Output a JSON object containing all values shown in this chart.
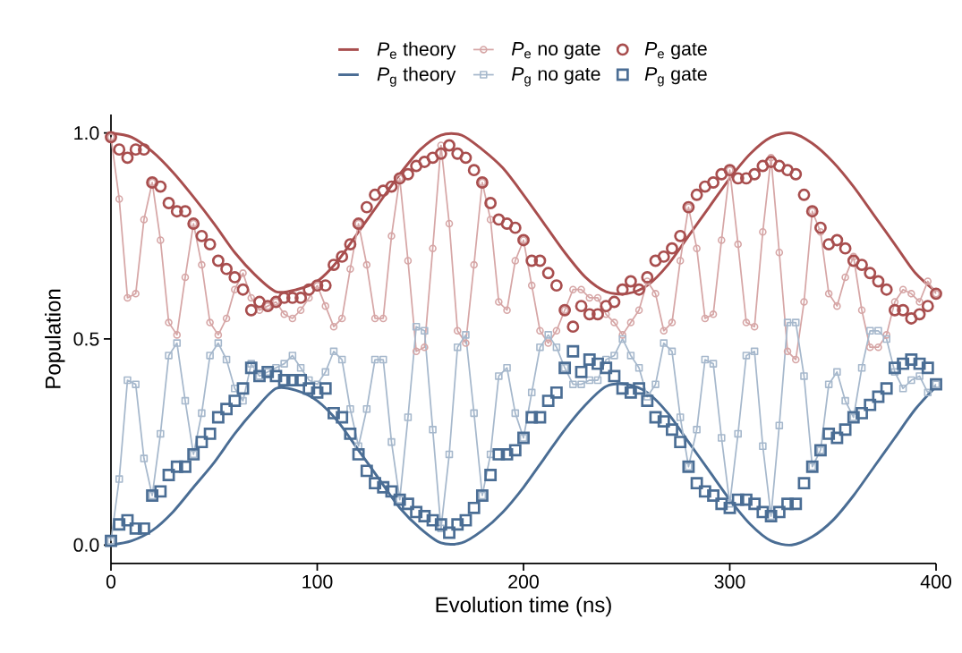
{
  "chart_data": {
    "type": "line",
    "xlabel": "Evolution time (ns)",
    "ylabel": "Population",
    "xlim": [
      0,
      400
    ],
    "ylim": [
      -0.045,
      1.045
    ],
    "xticks": [
      0,
      100,
      200,
      300,
      400
    ],
    "yticks": [
      {
        "value": 0,
        "label": "0.0"
      },
      {
        "value": 0.5,
        "label": "0.5"
      },
      {
        "value": 1,
        "label": "1.0"
      }
    ],
    "legend": "top",
    "x": [
      0,
      4,
      8,
      12,
      16,
      20,
      24,
      28,
      32,
      36,
      40,
      44,
      48,
      52,
      56,
      60,
      64,
      68,
      72,
      76,
      80,
      84,
      88,
      92,
      96,
      100,
      104,
      108,
      112,
      116,
      120,
      124,
      128,
      132,
      136,
      140,
      144,
      148,
      152,
      156,
      160,
      164,
      168,
      172,
      176,
      180,
      184,
      188,
      192,
      196,
      200,
      204,
      208,
      212,
      216,
      220,
      224,
      228,
      232,
      236,
      240,
      244,
      248,
      252,
      256,
      260,
      264,
      268,
      272,
      276,
      280,
      284,
      288,
      292,
      296,
      300,
      304,
      308,
      312,
      316,
      320,
      324,
      328,
      332,
      336,
      340,
      344,
      348,
      352,
      356,
      360,
      364,
      368,
      372,
      376,
      380,
      384,
      388,
      392,
      396,
      400
    ],
    "series": [
      {
        "name": "*P*$_{e}$ theory",
        "color": "#a84e4e",
        "x": [
          0,
          10,
          20,
          30,
          40,
          50,
          60,
          70,
          80,
          90,
          100,
          110,
          120,
          130,
          140,
          150,
          160,
          170,
          180,
          190,
          200,
          210,
          220,
          230,
          240,
          250,
          260,
          270,
          280,
          290,
          300,
          310,
          320,
          330,
          340,
          350,
          360,
          370,
          380,
          390,
          400
        ],
        "values": [
          1.0,
          0.99,
          0.955,
          0.905,
          0.845,
          0.78,
          0.71,
          0.655,
          0.615,
          0.62,
          0.64,
          0.69,
          0.76,
          0.83,
          0.9,
          0.96,
          0.995,
          0.995,
          0.96,
          0.915,
          0.85,
          0.78,
          0.71,
          0.65,
          0.615,
          0.61,
          0.63,
          0.68,
          0.75,
          0.82,
          0.89,
          0.95,
          0.99,
          1.0,
          0.975,
          0.93,
          0.87,
          0.8,
          0.73,
          0.66,
          0.615
        ]
      },
      {
        "name": "*P*$_{e}$ no gate",
        "marker": "circle",
        "color": "#d6a6a6",
        "values": [
          0.99,
          0.84,
          0.6,
          0.61,
          0.79,
          0.88,
          0.74,
          0.54,
          0.51,
          0.65,
          0.78,
          0.68,
          0.54,
          0.51,
          0.55,
          0.62,
          0.66,
          0.6,
          0.57,
          0.58,
          0.59,
          0.56,
          0.55,
          0.57,
          0.6,
          0.63,
          0.58,
          0.53,
          0.55,
          0.67,
          0.78,
          0.68,
          0.55,
          0.55,
          0.75,
          0.89,
          0.69,
          0.47,
          0.48,
          0.72,
          0.97,
          0.78,
          0.52,
          0.49,
          0.68,
          0.88,
          0.79,
          0.59,
          0.57,
          0.69,
          0.74,
          0.63,
          0.52,
          0.49,
          0.52,
          0.57,
          0.62,
          0.62,
          0.6,
          0.6,
          0.56,
          0.54,
          0.51,
          0.54,
          0.57,
          0.64,
          0.61,
          0.52,
          0.54,
          0.69,
          0.82,
          0.72,
          0.55,
          0.56,
          0.74,
          0.91,
          0.73,
          0.54,
          0.53,
          0.76,
          0.94,
          0.71,
          0.47,
          0.45,
          0.59,
          0.81,
          0.76,
          0.61,
          0.58,
          0.65,
          0.7,
          0.57,
          0.48,
          0.48,
          0.51,
          0.59,
          0.62,
          0.61,
          0.59,
          0.64,
          0.61
        ]
      },
      {
        "name": "*P*$_{e}$ gate",
        "type": "scatter",
        "marker": "circle",
        "color": "#a84e4e",
        "values": [
          0.99,
          0.96,
          0.94,
          0.96,
          0.96,
          0.88,
          0.87,
          0.83,
          0.81,
          0.81,
          0.78,
          0.75,
          0.73,
          0.69,
          0.67,
          0.65,
          0.62,
          0.57,
          0.59,
          0.58,
          0.59,
          0.6,
          0.6,
          0.6,
          0.62,
          0.63,
          0.63,
          0.68,
          0.7,
          0.73,
          0.78,
          0.82,
          0.85,
          0.86,
          0.87,
          0.89,
          0.9,
          0.92,
          0.93,
          0.94,
          0.95,
          0.97,
          0.95,
          0.94,
          0.91,
          0.88,
          0.83,
          0.79,
          0.78,
          0.77,
          0.74,
          0.69,
          0.69,
          0.66,
          0.63,
          0.57,
          0.53,
          0.58,
          0.56,
          0.56,
          0.58,
          0.59,
          0.62,
          0.64,
          0.62,
          0.65,
          0.69,
          0.7,
          0.72,
          0.75,
          0.82,
          0.85,
          0.87,
          0.88,
          0.9,
          0.91,
          0.89,
          0.89,
          0.9,
          0.92,
          0.93,
          0.92,
          0.91,
          0.9,
          0.85,
          0.81,
          0.77,
          0.73,
          0.74,
          0.72,
          0.69,
          0.68,
          0.66,
          0.64,
          0.62,
          0.57,
          0.57,
          0.55,
          0.56,
          0.58,
          0.61
        ]
      },
      {
        "name": "*P*$_{g}$ theory",
        "color": "#4a6d94",
        "x": [
          0,
          10,
          20,
          30,
          40,
          50,
          60,
          70,
          80,
          90,
          100,
          110,
          120,
          130,
          140,
          150,
          160,
          170,
          180,
          190,
          200,
          210,
          220,
          230,
          240,
          250,
          260,
          270,
          280,
          290,
          300,
          310,
          320,
          330,
          340,
          350,
          360,
          370,
          380,
          390,
          400
        ],
        "values": [
          0,
          0.01,
          0.035,
          0.08,
          0.14,
          0.2,
          0.27,
          0.33,
          0.38,
          0.375,
          0.35,
          0.3,
          0.23,
          0.16,
          0.09,
          0.04,
          0.005,
          0.005,
          0.035,
          0.08,
          0.14,
          0.21,
          0.28,
          0.34,
          0.385,
          0.39,
          0.37,
          0.32,
          0.25,
          0.18,
          0.11,
          0.05,
          0.01,
          0,
          0.02,
          0.06,
          0.12,
          0.19,
          0.26,
          0.33,
          0.385
        ]
      },
      {
        "name": "*P*$_{g}$ no gate",
        "marker": "square",
        "color": "#a6b8cc",
        "values": [
          0.01,
          0.16,
          0.4,
          0.39,
          0.21,
          0.12,
          0.27,
          0.46,
          0.49,
          0.35,
          0.22,
          0.32,
          0.46,
          0.49,
          0.45,
          0.38,
          0.35,
          0.44,
          0.41,
          0.42,
          0.43,
          0.44,
          0.46,
          0.43,
          0.4,
          0.39,
          0.42,
          0.47,
          0.45,
          0.33,
          0.24,
          0.33,
          0.45,
          0.45,
          0.25,
          0.11,
          0.31,
          0.53,
          0.52,
          0.28,
          0.04,
          0.22,
          0.48,
          0.51,
          0.32,
          0.12,
          0.22,
          0.41,
          0.43,
          0.32,
          0.26,
          0.37,
          0.48,
          0.51,
          0.48,
          0.43,
          0.39,
          0.39,
          0.4,
          0.4,
          0.45,
          0.46,
          0.5,
          0.46,
          0.43,
          0.36,
          0.39,
          0.49,
          0.47,
          0.31,
          0.19,
          0.28,
          0.45,
          0.44,
          0.26,
          0.1,
          0.27,
          0.46,
          0.47,
          0.24,
          0.07,
          0.29,
          0.54,
          0.54,
          0.41,
          0.19,
          0.23,
          0.39,
          0.42,
          0.35,
          0.31,
          0.43,
          0.52,
          0.52,
          0.5,
          0.42,
          0.38,
          0.4,
          0.41,
          0.37,
          0.39
        ]
      },
      {
        "name": "*P*$_{g}$ gate",
        "type": "scatter",
        "marker": "square",
        "color": "#4a6d94",
        "values": [
          0.01,
          0.05,
          0.06,
          0.04,
          0.04,
          0.12,
          0.13,
          0.17,
          0.19,
          0.19,
          0.22,
          0.25,
          0.27,
          0.31,
          0.33,
          0.35,
          0.38,
          0.43,
          0.41,
          0.42,
          0.41,
          0.4,
          0.4,
          0.4,
          0.38,
          0.37,
          0.38,
          0.32,
          0.31,
          0.27,
          0.22,
          0.18,
          0.15,
          0.14,
          0.13,
          0.11,
          0.1,
          0.08,
          0.07,
          0.06,
          0.05,
          0.03,
          0.05,
          0.06,
          0.09,
          0.12,
          0.17,
          0.22,
          0.22,
          0.23,
          0.26,
          0.31,
          0.31,
          0.35,
          0.37,
          0.43,
          0.47,
          0.42,
          0.45,
          0.44,
          0.43,
          0.41,
          0.38,
          0.37,
          0.38,
          0.35,
          0.31,
          0.3,
          0.28,
          0.25,
          0.19,
          0.15,
          0.13,
          0.12,
          0.1,
          0.09,
          0.11,
          0.11,
          0.1,
          0.08,
          0.07,
          0.08,
          0.1,
          0.1,
          0.15,
          0.19,
          0.23,
          0.27,
          0.26,
          0.28,
          0.31,
          0.32,
          0.34,
          0.36,
          0.38,
          0.43,
          0.44,
          0.45,
          0.44,
          0.43,
          0.39
        ]
      }
    ]
  }
}
